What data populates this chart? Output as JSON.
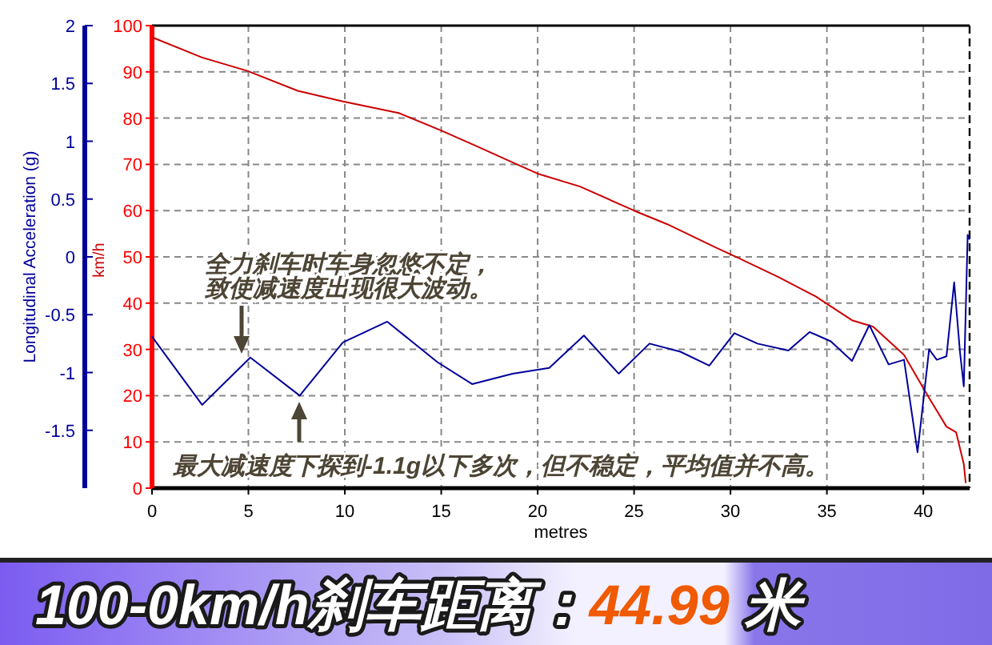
{
  "chart_data": {
    "type": "line",
    "title": "100-0km/h刹车距离：**44.99** 米",
    "xlabel": "metres",
    "ylabel": "km/h",
    "y2label": "Longitudinal Acceleration (g)",
    "x": [
      0,
      2.6,
      4.95,
      7.56,
      9.9,
      12.8,
      15,
      16.9,
      18.6,
      20,
      22.2,
      25,
      26.7,
      29.2,
      30.5,
      32.5,
      34.4,
      36.3,
      37.4,
      39,
      40.2,
      41.2,
      41.7,
      42.1,
      42.2
    ],
    "series": [
      {
        "color": "#cc0000",
        "values": [
          97.5,
          93.1,
          90.2,
          85.9,
          83.6,
          81.1,
          77.3,
          73.8,
          70.6,
          68,
          65.2,
          60,
          57.1,
          52.1,
          49.6,
          45.6,
          41.5,
          36.3,
          34.9,
          28.8,
          20.2,
          13.3,
          12.1,
          5.2,
          1.1
        ]
      },
      {
        "color": "#000099",
        "axis": "y2",
        "x": [
          0,
          2.6,
          5.1,
          7.66,
          9.9,
          12.2,
          14.8,
          16.6,
          18.7,
          20.6,
          22.4,
          24.2,
          25.8,
          27.4,
          28.9,
          30.2,
          31.4,
          33,
          34.1,
          35.2,
          36.3,
          37.2,
          38.2,
          39,
          39.7,
          40.3,
          40.7,
          41.2,
          41.6,
          41.9,
          42.1,
          42.3,
          42.4
        ],
        "values": [
          -0.69,
          -1.28,
          -0.87,
          -1.2,
          -0.74,
          -0.56,
          -0.91,
          -1.1,
          -1.01,
          -0.96,
          -0.68,
          -1.01,
          -0.75,
          -0.82,
          -0.94,
          -0.66,
          -0.75,
          -0.81,
          -0.65,
          -0.73,
          -0.9,
          -0.59,
          -0.93,
          -0.89,
          -1.69,
          -0.8,
          -0.89,
          -0.86,
          -0.22,
          -0.82,
          -1.12,
          0.19,
          0.15
        ]
      }
    ],
    "xlim": [
      0,
      42.4
    ],
    "xticks": [
      0,
      5,
      10,
      15,
      20,
      25,
      30,
      35,
      40
    ],
    "ylim": [
      0,
      100
    ],
    "yticks": [
      0,
      10,
      20,
      30,
      40,
      50,
      60,
      70,
      80,
      90,
      100
    ],
    "y2lim": [
      -2,
      2
    ],
    "y2ticks": [
      -1.5,
      -1,
      -0.5,
      0,
      0.5,
      1,
      1.5,
      2
    ],
    "grid": true,
    "annotations": [
      "全力刹车时车身忽悠不定，致使减速度出现很大波动。",
      "最大减速度下探到-1.1g以下多次，但不稳定，平均值并不高。"
    ]
  }
}
